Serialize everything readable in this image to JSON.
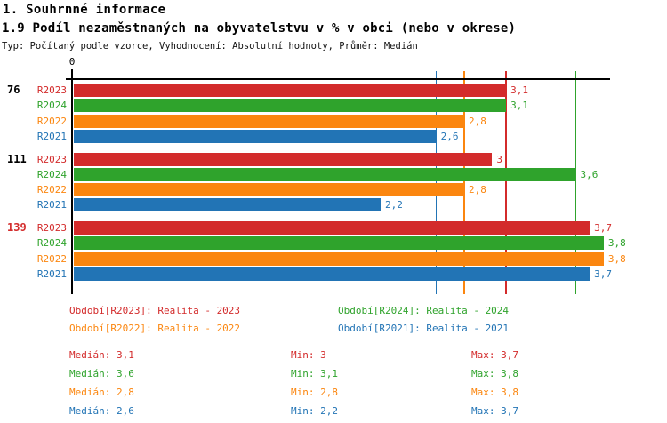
{
  "page": {
    "title": "1. Souhrnné informace",
    "subtitle": "1.9 Podíl nezaměstnaných na obyvatelstvu v % v obci (nebo v okrese)",
    "meta": "Typ: Počítaný podle vzorce, Vyhodnocení: Absolutní hodnoty, Průměr: Medián"
  },
  "colors": {
    "R2023": "#d32b2b",
    "R2024": "#2fa32c",
    "R2022": "#fb860f",
    "R2021": "#2274b5",
    "axis": "#000000",
    "highlight": "#d32b2b",
    "text": "#000000"
  },
  "chart_data": {
    "type": "bar",
    "orientation": "horizontal",
    "title": "1.9 Podíl nezaměstnaných na obyvatelstvu v % v obci (nebo v okrese)",
    "x_axis": {
      "min": 0,
      "max": 3.85,
      "zero_label": "0"
    },
    "categories": [
      "76",
      "111",
      "139"
    ],
    "category_highlight": [
      false,
      false,
      true
    ],
    "bar_order": [
      "R2023",
      "R2024",
      "R2022",
      "R2021"
    ],
    "series": [
      {
        "name": "R2023",
        "values": [
          3.1,
          3.0,
          3.7
        ],
        "display": [
          "3,1",
          "3",
          "3,7"
        ],
        "median": 3.1,
        "min": 3.0,
        "max": 3.7
      },
      {
        "name": "R2024",
        "values": [
          3.1,
          3.6,
          3.8
        ],
        "display": [
          "3,1",
          "3,6",
          "3,8"
        ],
        "median": 3.6,
        "min": 3.1,
        "max": 3.8
      },
      {
        "name": "R2022",
        "values": [
          2.8,
          2.8,
          3.8
        ],
        "display": [
          "2,8",
          "2,8",
          "3,8"
        ],
        "median": 2.8,
        "min": 2.8,
        "max": 3.8
      },
      {
        "name": "R2021",
        "values": [
          2.6,
          2.2,
          3.7
        ],
        "display": [
          "2,6",
          "2,2",
          "3,7"
        ],
        "median": 2.6,
        "min": 2.2,
        "max": 3.7
      }
    ],
    "gridlines": "median lines per series, full height",
    "legend_position": "below"
  },
  "legend": {
    "items": [
      {
        "series": "R2023",
        "label": "Období[R2023]: Realita - 2023"
      },
      {
        "series": "R2024",
        "label": "Období[R2024]: Realita - 2024"
      },
      {
        "series": "R2022",
        "label": "Období[R2022]: Realita - 2022"
      },
      {
        "series": "R2021",
        "label": "Období[R2021]: Realita - 2021"
      }
    ]
  },
  "stats": {
    "rows": [
      {
        "series": "R2023",
        "median": "Medián: 3,1",
        "min": "Min: 3",
        "max": "Max: 3,7"
      },
      {
        "series": "R2024",
        "median": "Medián: 3,6",
        "min": "Min: 3,1",
        "max": "Max: 3,8"
      },
      {
        "series": "R2022",
        "median": "Medián: 2,8",
        "min": "Min: 2,8",
        "max": "Max: 3,8"
      },
      {
        "series": "R2021",
        "median": "Medián: 2,6",
        "min": "Min: 2,2",
        "max": "Max: 3,7"
      }
    ]
  }
}
